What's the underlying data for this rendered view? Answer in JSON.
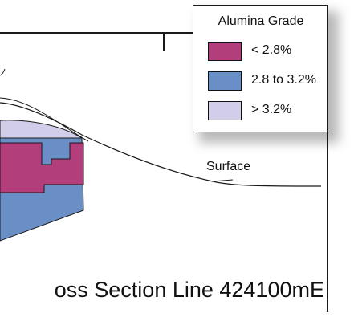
{
  "legend": {
    "title": "Alumina Grade",
    "items": [
      {
        "label": "< 2.8%",
        "color": "#b23f7c"
      },
      {
        "label": "2.8 to 3.2%",
        "color": "#6a8fc7"
      },
      {
        "label": "> 3.2%",
        "color": "#d2cde8"
      }
    ]
  },
  "surface_label": "Surface",
  "section_label": "oss Section Line 424100mE",
  "colors": {
    "line": "#1a1a1a",
    "low_grade": "#b23f7c",
    "mid_grade": "#6a8fc7",
    "high_grade": "#d2cde8"
  }
}
